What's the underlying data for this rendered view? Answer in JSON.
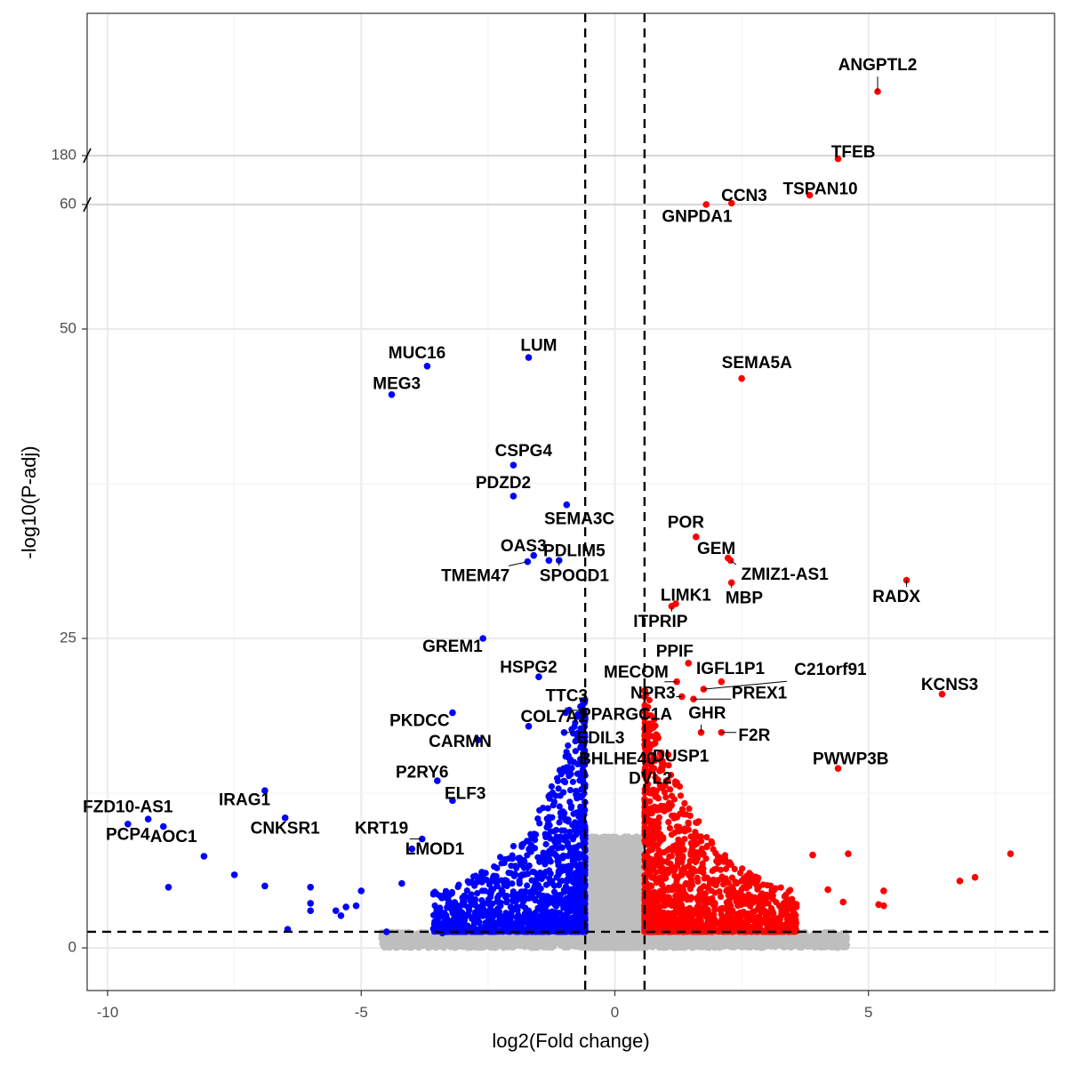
{
  "chart_data": {
    "type": "scatter",
    "title": "",
    "xlabel": "log2(Fold change)",
    "ylabel": "-log10(P-adj)",
    "xlim": [
      -10.4,
      8.5
    ],
    "ylim_lower": [
      -3.5,
      53
    ],
    "ylim_upper_segments": [
      [
        59.5,
        60.5
      ],
      [
        179.5,
        184
      ]
    ],
    "y_axis_breaks": [
      60,
      180
    ],
    "x_ticks": [
      -10,
      -5,
      0,
      5
    ],
    "x_tick_labels": [
      "-10",
      "-5",
      "0",
      "5"
    ],
    "y_ticks": [
      0,
      25,
      50,
      60,
      180
    ],
    "y_tick_labels": [
      "0",
      "25",
      "50",
      "60",
      "180"
    ],
    "grid": true,
    "thresholds": {
      "log2fc": [
        -0.585,
        0.585
      ],
      "neg_log10_padj": 1.3
    },
    "colors": {
      "down": "#0000ff",
      "up": "#ff0000",
      "ns": "#bebebe",
      "threshold_line": "#000000",
      "grid": "#ebebeb",
      "break_line": "#bdbdbd",
      "axis": "#333333"
    },
    "labeled_points": [
      {
        "gene": "ANGPTL2",
        "x": 5.18,
        "y": 182.0,
        "group": "up",
        "lx": 5.18,
        "ly": 182.8
      },
      {
        "gene": "TFEB",
        "x": 4.4,
        "y": 179.9,
        "group": "up",
        "lx": 4.7,
        "ly": 180.08
      },
      {
        "gene": "TSPAN10",
        "x": 3.84,
        "y": 60.35,
        "group": "up",
        "lx": 4.05,
        "ly": 60.55
      },
      {
        "gene": "CCN3",
        "x": 2.3,
        "y": 60.05,
        "group": "up",
        "lx": 2.55,
        "ly": 60.3
      },
      {
        "gene": "GNPDA1",
        "x": 1.8,
        "y": 60.0,
        "group": "up",
        "lx": 1.62,
        "ly": 59.52
      },
      {
        "gene": "SEMA5A",
        "x": 2.5,
        "y": 46.0,
        "group": "up",
        "lx": 2.8,
        "ly": 47.2
      },
      {
        "gene": "LUM",
        "x": -1.7,
        "y": 47.7,
        "group": "down",
        "lx": -1.5,
        "ly": 48.6
      },
      {
        "gene": "MUC16",
        "x": -3.7,
        "y": 47.0,
        "group": "down",
        "lx": -3.9,
        "ly": 48.0
      },
      {
        "gene": "MEG3",
        "x": -4.4,
        "y": 44.7,
        "group": "down",
        "lx": -4.3,
        "ly": 45.5
      },
      {
        "gene": "CSPG4",
        "x": -2.0,
        "y": 39.0,
        "group": "down",
        "lx": -1.8,
        "ly": 40.1
      },
      {
        "gene": "PDZD2",
        "x": -2.0,
        "y": 36.5,
        "group": "down",
        "lx": -2.2,
        "ly": 37.5
      },
      {
        "gene": "SEMA3C",
        "x": -0.95,
        "y": 35.8,
        "group": "down",
        "lx": -0.7,
        "ly": 34.6
      },
      {
        "gene": "OAS3",
        "x": -1.6,
        "y": 31.7,
        "group": "down",
        "lx": -1.8,
        "ly": 32.4
      },
      {
        "gene": "PDLIM5",
        "x": -1.3,
        "y": 31.3,
        "group": "down",
        "lx": -0.8,
        "ly": 32.0
      },
      {
        "gene": "TMEM47",
        "x": -1.72,
        "y": 31.2,
        "group": "down",
        "lx": -2.75,
        "ly": 30.0
      },
      {
        "gene": "SPOCD1",
        "x": -1.1,
        "y": 31.3,
        "group": "down",
        "lx": -0.8,
        "ly": 30.0
      },
      {
        "gene": "POR",
        "x": 1.6,
        "y": 33.2,
        "group": "up",
        "lx": 1.4,
        "ly": 34.3
      },
      {
        "gene": "GEM",
        "x": 2.23,
        "y": 31.5,
        "group": "up",
        "lx": 2.0,
        "ly": 32.2
      },
      {
        "gene": "ZMIZ1-AS1",
        "x": 2.28,
        "y": 31.3,
        "group": "up",
        "lx": 3.35,
        "ly": 30.1
      },
      {
        "gene": "RADX",
        "x": 5.75,
        "y": 29.7,
        "group": "up",
        "lx": 5.55,
        "ly": 28.3
      },
      {
        "gene": "MBP",
        "x": 2.3,
        "y": 29.5,
        "group": "up",
        "lx": 2.55,
        "ly": 28.2
      },
      {
        "gene": "LIMK1",
        "x": 1.2,
        "y": 27.8,
        "group": "up",
        "lx": 1.4,
        "ly": 28.4
      },
      {
        "gene": "ITPRIP",
        "x": 1.12,
        "y": 27.6,
        "group": "up",
        "lx": 0.9,
        "ly": 26.3
      },
      {
        "gene": "GREM1",
        "x": -2.6,
        "y": 25.0,
        "group": "down",
        "lx": -3.2,
        "ly": 24.3
      },
      {
        "gene": "HSPG2",
        "x": -1.5,
        "y": 21.9,
        "group": "down",
        "lx": -1.7,
        "ly": 22.6
      },
      {
        "gene": "PPIF",
        "x": 1.45,
        "y": 23.0,
        "group": "up",
        "lx": 1.18,
        "ly": 23.9
      },
      {
        "gene": "MECOM",
        "x": 1.22,
        "y": 21.5,
        "group": "up",
        "lx": 0.42,
        "ly": 22.2
      },
      {
        "gene": "IGFL1P1",
        "x": 2.1,
        "y": 21.5,
        "group": "up",
        "lx": 2.28,
        "ly": 22.5
      },
      {
        "gene": "C21orf91",
        "x": 1.75,
        "y": 20.9,
        "group": "up",
        "lx": 4.25,
        "ly": 22.4
      },
      {
        "gene": "NPR3",
        "x": 1.32,
        "y": 20.3,
        "group": "up",
        "lx": 0.75,
        "ly": 20.5
      },
      {
        "gene": "PREX1",
        "x": 1.55,
        "y": 20.1,
        "group": "up",
        "lx": 2.85,
        "ly": 20.5
      },
      {
        "gene": "KCNS3",
        "x": 6.45,
        "y": 20.5,
        "group": "up",
        "lx": 6.6,
        "ly": 21.2
      },
      {
        "gene": "TTC3",
        "x": -0.97,
        "y": 19.0,
        "group": "down",
        "lx": -0.95,
        "ly": 20.3
      },
      {
        "gene": "PPARGC1A",
        "x": -0.9,
        "y": 19.2,
        "group": "down",
        "lx": 0.22,
        "ly": 18.8
      },
      {
        "gene": "GHR",
        "x": 1.7,
        "y": 17.4,
        "group": "up",
        "lx": 1.82,
        "ly": 18.9
      },
      {
        "gene": "COL7A1",
        "x": -1.7,
        "y": 17.9,
        "group": "down",
        "lx": -1.2,
        "ly": 18.6
      },
      {
        "gene": "PKDCC",
        "x": -3.2,
        "y": 19.0,
        "group": "down",
        "lx": -3.85,
        "ly": 18.3
      },
      {
        "gene": "F2R",
        "x": 2.1,
        "y": 17.4,
        "group": "up",
        "lx": 2.75,
        "ly": 17.1
      },
      {
        "gene": "EDIL3",
        "x": -1.0,
        "y": 17.4,
        "group": "down",
        "lx": -0.28,
        "ly": 16.9
      },
      {
        "gene": "CARMN",
        "x": -2.7,
        "y": 16.8,
        "group": "down",
        "lx": -3.05,
        "ly": 16.6
      },
      {
        "gene": "DUSP1",
        "x": 1.05,
        "y": 15.6,
        "group": "up",
        "lx": 1.3,
        "ly": 15.4
      },
      {
        "gene": "BHLHE40",
        "x": 0.9,
        "y": 15.2,
        "group": "up",
        "lx": 0.05,
        "ly": 15.2
      },
      {
        "gene": "PWWP3B",
        "x": 4.4,
        "y": 14.5,
        "group": "up",
        "lx": 4.65,
        "ly": 15.2
      },
      {
        "gene": "P2RY6",
        "x": -3.5,
        "y": 13.5,
        "group": "down",
        "lx": -3.8,
        "ly": 14.1
      },
      {
        "gene": "DVL2",
        "x": 0.73,
        "y": 14.3,
        "group": "up",
        "lx": 0.7,
        "ly": 13.6
      },
      {
        "gene": "ELF3",
        "x": -3.2,
        "y": 11.9,
        "group": "down",
        "lx": -2.95,
        "ly": 12.4
      },
      {
        "gene": "IRAG1",
        "x": -6.9,
        "y": 12.7,
        "group": "down",
        "lx": -7.3,
        "ly": 11.9
      },
      {
        "gene": "FZD10-AS1",
        "x": -9.2,
        "y": 10.4,
        "group": "down",
        "lx": -9.6,
        "ly": 11.3
      },
      {
        "gene": "CNKSR1",
        "x": -6.5,
        "y": 10.5,
        "group": "down",
        "lx": -6.5,
        "ly": 9.6
      },
      {
        "gene": "PCP4",
        "x": -9.6,
        "y": 10.0,
        "group": "down",
        "lx": -9.6,
        "ly": 9.1
      },
      {
        "gene": "AOC1",
        "x": -8.9,
        "y": 9.8,
        "group": "down",
        "lx": -8.7,
        "ly": 8.9
      },
      {
        "gene": "KRT19",
        "x": -3.8,
        "y": 8.8,
        "group": "down",
        "lx": -4.6,
        "ly": 9.6
      },
      {
        "gene": "LMOD1",
        "x": -4.0,
        "y": 8.0,
        "group": "down",
        "lx": -3.55,
        "ly": 7.9
      }
    ],
    "unlabeled_points": [
      {
        "x": -8.1,
        "y": 7.4,
        "group": "down"
      },
      {
        "x": -7.5,
        "y": 5.9,
        "group": "down"
      },
      {
        "x": -6.9,
        "y": 5.0,
        "group": "down"
      },
      {
        "x": -8.8,
        "y": 4.9,
        "group": "down"
      },
      {
        "x": -6.0,
        "y": 4.9,
        "group": "down"
      },
      {
        "x": -6.0,
        "y": 3.6,
        "group": "down"
      },
      {
        "x": -6.0,
        "y": 3.0,
        "group": "down"
      },
      {
        "x": -5.5,
        "y": 3.0,
        "group": "down"
      },
      {
        "x": -5.1,
        "y": 3.4,
        "group": "down"
      },
      {
        "x": -5.0,
        "y": 4.6,
        "group": "down"
      },
      {
        "x": -5.4,
        "y": 2.6,
        "group": "down"
      },
      {
        "x": -6.45,
        "y": 1.5,
        "group": "down"
      },
      {
        "x": -5.3,
        "y": 3.3,
        "group": "down"
      },
      {
        "x": -4.2,
        "y": 5.2,
        "group": "down"
      },
      {
        "x": 7.8,
        "y": 7.6,
        "group": "up"
      },
      {
        "x": 7.1,
        "y": 5.7,
        "group": "up"
      },
      {
        "x": 6.8,
        "y": 5.4,
        "group": "up"
      },
      {
        "x": 5.3,
        "y": 4.6,
        "group": "up"
      },
      {
        "x": 5.2,
        "y": 3.5,
        "group": "up"
      },
      {
        "x": 5.3,
        "y": 3.4,
        "group": "up"
      },
      {
        "x": 4.6,
        "y": 7.6,
        "group": "up"
      },
      {
        "x": 3.9,
        "y": 7.5,
        "group": "up"
      },
      {
        "x": 4.5,
        "y": 3.7,
        "group": "up"
      },
      {
        "x": -3.4,
        "y": 1.2,
        "group": "down"
      },
      {
        "x": -4.5,
        "y": 1.3,
        "group": "down"
      },
      {
        "x": 4.2,
        "y": 4.7,
        "group": "up"
      }
    ],
    "background_cloud": {
      "description_counts": {
        "down": 1500,
        "up": 1500,
        "ns": 5000
      },
      "down_x_range": [
        -5.0,
        -0.585
      ],
      "up_x_range": [
        0.585,
        5.0
      ],
      "ns_x_range": [
        -5.5,
        4.5
      ],
      "y_range": [
        0,
        20
      ]
    }
  }
}
